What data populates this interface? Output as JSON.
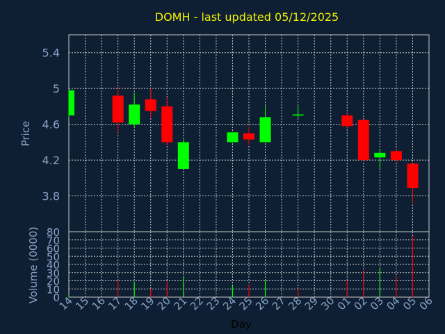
{
  "chart_data": [
    {
      "type": "candlestick",
      "title": "DOMH - last updated 05/12/2025",
      "ylabel": "Price",
      "ylim": [
        3.4,
        5.6
      ],
      "yticks": [
        3.8,
        4.2,
        4.6,
        5,
        5.4
      ],
      "ytick_labels": [
        "3.8",
        "4.2",
        "4.6",
        "5",
        "5.4"
      ],
      "colors": {
        "up": "#00ff00",
        "down": "#ff0000",
        "background": "#0f1f33",
        "grid": "#c8c8c8",
        "title": "#f0f000",
        "text": "#8aa4c8"
      },
      "x": [
        "14",
        "17",
        "18",
        "19",
        "20",
        "21",
        "24",
        "25",
        "26",
        "28",
        "01",
        "02",
        "03",
        "04",
        "05"
      ],
      "candles": [
        {
          "day": "14",
          "open": 4.7,
          "high": 4.98,
          "low": 4.68,
          "close": 4.98
        },
        {
          "day": "17",
          "open": 4.92,
          "high": 5.02,
          "low": 4.5,
          "close": 4.62
        },
        {
          "day": "18",
          "open": 4.6,
          "high": 4.95,
          "low": 4.57,
          "close": 4.82
        },
        {
          "day": "19",
          "open": 4.88,
          "high": 5.0,
          "low": 4.68,
          "close": 4.75
        },
        {
          "day": "20",
          "open": 4.8,
          "high": 4.9,
          "low": 4.37,
          "close": 4.4
        },
        {
          "day": "21",
          "open": 4.1,
          "high": 4.43,
          "low": 4.1,
          "close": 4.4
        },
        {
          "day": "24",
          "open": 4.4,
          "high": 4.51,
          "low": 4.4,
          "close": 4.51
        },
        {
          "day": "25",
          "open": 4.5,
          "high": 4.58,
          "low": 4.37,
          "close": 4.43
        },
        {
          "day": "26",
          "open": 4.4,
          "high": 4.8,
          "low": 4.4,
          "close": 4.68
        },
        {
          "day": "28",
          "open": 4.71,
          "high": 4.8,
          "low": 4.67,
          "close": 4.71
        },
        {
          "day": "01",
          "open": 4.7,
          "high": 4.72,
          "low": 4.55,
          "close": 4.58
        },
        {
          "day": "02",
          "open": 4.65,
          "high": 4.65,
          "low": 4.18,
          "close": 4.2
        },
        {
          "day": "03",
          "open": 4.23,
          "high": 4.32,
          "low": 4.1,
          "close": 4.28
        },
        {
          "day": "04",
          "open": 4.3,
          "high": 4.32,
          "low": 4.17,
          "close": 4.2
        },
        {
          "day": "05",
          "open": 4.16,
          "high": 4.16,
          "low": 3.72,
          "close": 3.89
        }
      ]
    },
    {
      "type": "bar",
      "ylabel": "Volume (0000)",
      "xlabel": "Day",
      "ylim": [
        0,
        80
      ],
      "yticks": [
        0,
        10,
        20,
        30,
        40,
        50,
        60,
        70,
        80
      ],
      "ytick_labels": [
        "0",
        "10",
        "20",
        "30",
        "40",
        "50",
        "60",
        "70",
        "80"
      ],
      "x_tick_labels": [
        "14",
        "15",
        "16",
        "17",
        "18",
        "19",
        "20",
        "21",
        "22",
        "23",
        "24",
        "25",
        "26",
        "27",
        "28",
        "29",
        "30",
        "01",
        "02",
        "03",
        "04",
        "05",
        "06"
      ],
      "bars": [
        {
          "day": "14",
          "value": 3,
          "dir": "up"
        },
        {
          "day": "17",
          "value": 20,
          "dir": "down"
        },
        {
          "day": "18",
          "value": 19,
          "dir": "up"
        },
        {
          "day": "19",
          "value": 10,
          "dir": "down"
        },
        {
          "day": "20",
          "value": 19,
          "dir": "down"
        },
        {
          "day": "21",
          "value": 25,
          "dir": "up"
        },
        {
          "day": "24",
          "value": 14,
          "dir": "up"
        },
        {
          "day": "25",
          "value": 15,
          "dir": "down"
        },
        {
          "day": "26",
          "value": 20,
          "dir": "up"
        },
        {
          "day": "28",
          "value": 10,
          "dir": "down"
        },
        {
          "day": "01",
          "value": 20,
          "dir": "down"
        },
        {
          "day": "02",
          "value": 33,
          "dir": "down"
        },
        {
          "day": "03",
          "value": 36,
          "dir": "up"
        },
        {
          "day": "04",
          "value": 25,
          "dir": "down"
        },
        {
          "day": "05",
          "value": 75,
          "dir": "down"
        }
      ]
    }
  ]
}
